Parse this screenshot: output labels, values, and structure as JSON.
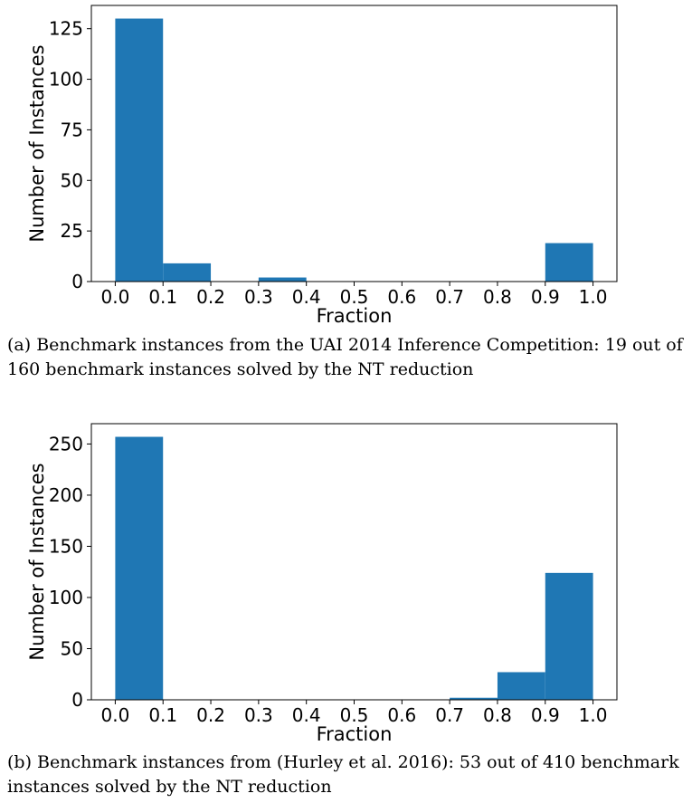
{
  "figures": [
    {
      "caption": "(a) Benchmark instances from the UAI 2014 Inference Competition: 19 out of 160 benchmark instances solved by the NT reduction"
    },
    {
      "caption": "(b) Benchmark instances from (Hurley et al. 2016): 53 out of 410 benchmark instances solved by the NT reduction"
    }
  ],
  "chart_data": [
    {
      "type": "bar",
      "subtype": "histogram",
      "xlabel": "Fraction",
      "ylabel": "Number of Instances",
      "bin_edges": [
        0.0,
        0.1,
        0.2,
        0.3,
        0.4,
        0.5,
        0.6,
        0.7,
        0.8,
        0.9,
        1.0
      ],
      "values": [
        130,
        9,
        0,
        2,
        0,
        0,
        0,
        0,
        0,
        19
      ],
      "xticks": [
        "0.0",
        "0.1",
        "0.2",
        "0.3",
        "0.4",
        "0.5",
        "0.6",
        "0.7",
        "0.8",
        "0.9",
        "1.0"
      ],
      "yticks": [
        0,
        25,
        50,
        75,
        100,
        125
      ],
      "xlim": [
        -0.05,
        1.05
      ],
      "ylim": [
        0,
        136.5
      ],
      "bar_color": "#1f77b4",
      "grid": false
    },
    {
      "type": "bar",
      "subtype": "histogram",
      "xlabel": "Fraction",
      "ylabel": "Number of Instances",
      "bin_edges": [
        0.0,
        0.1,
        0.2,
        0.3,
        0.4,
        0.5,
        0.6,
        0.7,
        0.8,
        0.9,
        1.0
      ],
      "values": [
        257,
        0,
        0,
        0,
        0,
        0,
        0,
        2,
        27,
        124
      ],
      "xticks": [
        "0.0",
        "0.1",
        "0.2",
        "0.3",
        "0.4",
        "0.5",
        "0.6",
        "0.7",
        "0.8",
        "0.9",
        "1.0"
      ],
      "yticks": [
        0,
        50,
        100,
        150,
        200,
        250
      ],
      "xlim": [
        -0.05,
        1.05
      ],
      "ylim": [
        0,
        269.85
      ],
      "bar_color": "#1f77b4",
      "grid": false
    }
  ]
}
